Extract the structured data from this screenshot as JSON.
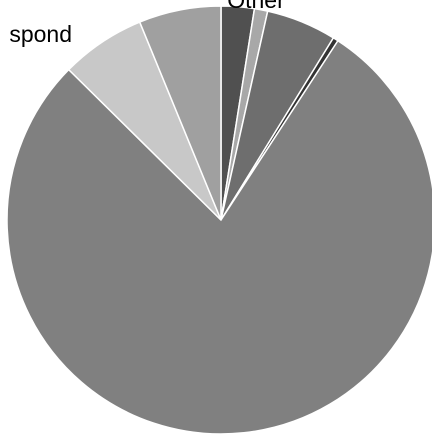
{
  "chart_data": {
    "type": "pie",
    "categories": [
      null,
      "Other",
      null,
      null,
      null,
      "spond",
      null
    ],
    "values": [
      2.5,
      1,
      5.3,
      0.4,
      78.2,
      6.4,
      6.2
    ],
    "colors": [
      "#505050",
      "#a8a8a8",
      "#6e6e6e",
      "#333333",
      "#808080",
      "#c8c8c8",
      "#a0a0a0"
    ]
  }
}
